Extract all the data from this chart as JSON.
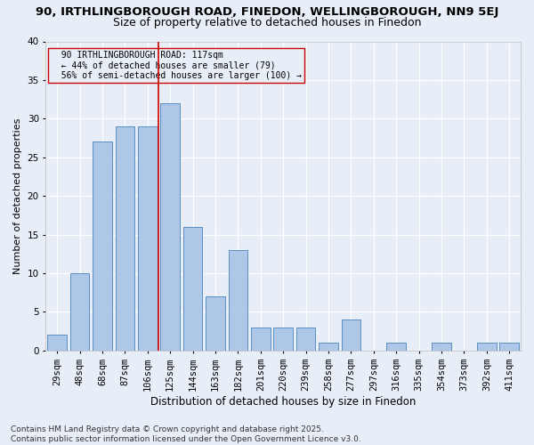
{
  "title1": "90, IRTHLINGBOROUGH ROAD, FINEDON, WELLINGBOROUGH, NN9 5EJ",
  "title2": "Size of property relative to detached houses in Finedon",
  "xlabel": "Distribution of detached houses by size in Finedon",
  "ylabel": "Number of detached properties",
  "categories": [
    "29sqm",
    "48sqm",
    "68sqm",
    "87sqm",
    "106sqm",
    "125sqm",
    "144sqm",
    "163sqm",
    "182sqm",
    "201sqm",
    "220sqm",
    "239sqm",
    "258sqm",
    "277sqm",
    "297sqm",
    "316sqm",
    "335sqm",
    "354sqm",
    "373sqm",
    "392sqm",
    "411sqm"
  ],
  "values": [
    2,
    10,
    27,
    29,
    29,
    32,
    16,
    7,
    13,
    3,
    3,
    3,
    1,
    4,
    0,
    1,
    0,
    1,
    0,
    1,
    1
  ],
  "bar_color": "#aec6e8",
  "bar_edge_color": "#5a8fc2",
  "background_color": "#e8eef7",
  "grid_color": "#ffffff",
  "annotation_text_line1": "  90 IRTHLINGBOROUGH ROAD: 117sqm",
  "annotation_text_line2": "  ← 44% of detached houses are smaller (79)",
  "annotation_text_line3": "  56% of semi-detached houses are larger (100) →",
  "vline_color": "#cc0000",
  "ylim": [
    0,
    40
  ],
  "yticks": [
    0,
    5,
    10,
    15,
    20,
    25,
    30,
    35,
    40
  ],
  "footer_line1": "Contains HM Land Registry data © Crown copyright and database right 2025.",
  "footer_line2": "Contains public sector information licensed under the Open Government Licence v3.0.",
  "title1_fontsize": 9.5,
  "title2_fontsize": 9,
  "xlabel_fontsize": 8.5,
  "ylabel_fontsize": 8,
  "annotation_fontsize": 7,
  "footer_fontsize": 6.5,
  "tick_fontsize": 7.5
}
